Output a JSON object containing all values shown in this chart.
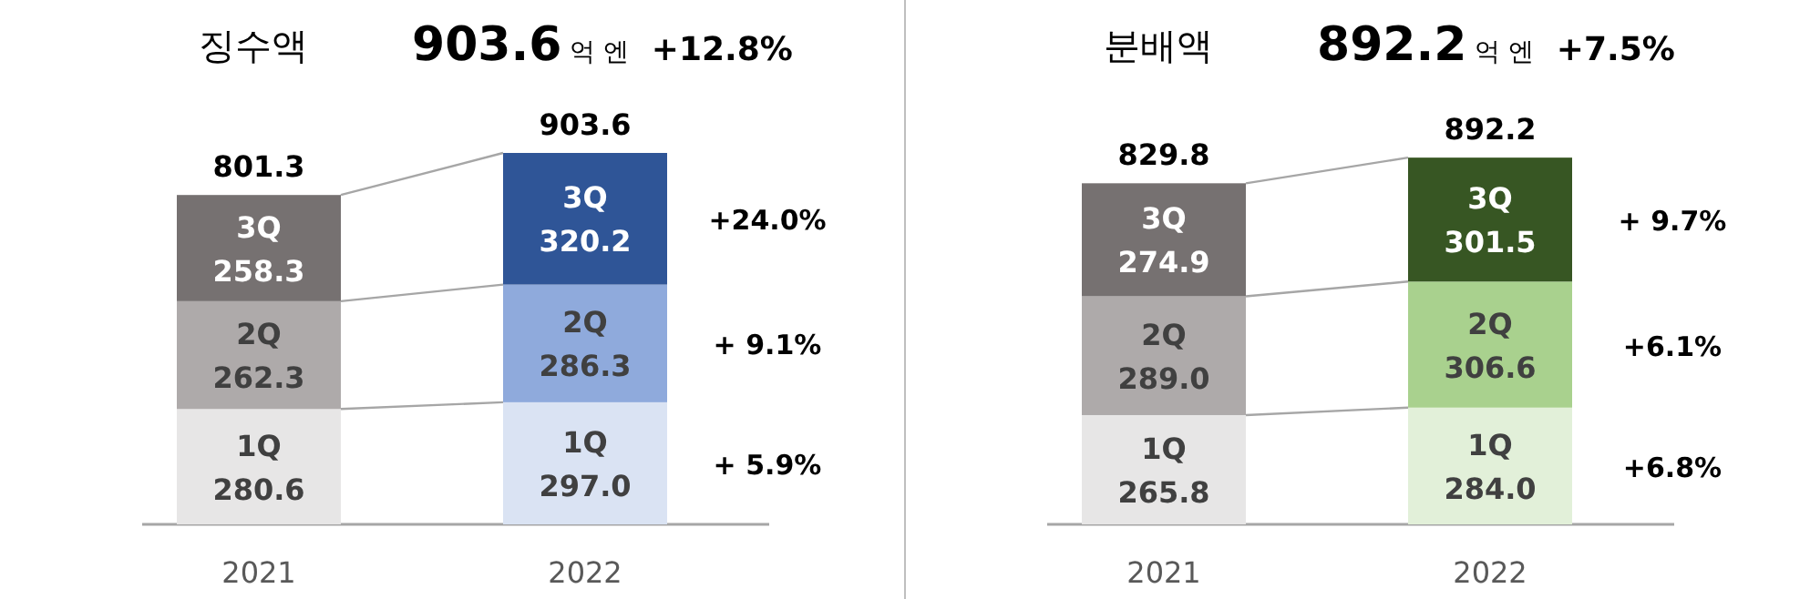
{
  "chart_data": [
    {
      "type": "bar",
      "stacked": true,
      "title": "징수액",
      "subtitle": "903.6 억 엔 +12.8%",
      "categories": [
        "2021",
        "2022"
      ],
      "series": [
        {
          "name": "1Q",
          "colors": [
            "#e7e6e6",
            "#dae3f3"
          ],
          "values": [
            280.6,
            297.0
          ],
          "value_labels": [
            "280.6",
            "297.0"
          ]
        },
        {
          "name": "2Q",
          "colors": [
            "#aeaaaa",
            "#8faadc"
          ],
          "values": [
            262.3,
            286.3
          ],
          "value_labels": [
            "262.3",
            "286.3"
          ]
        },
        {
          "name": "3Q",
          "colors": [
            "#767171",
            "#2f5597"
          ],
          "values": [
            258.3,
            320.2
          ],
          "value_labels": [
            "258.3",
            "320.2"
          ]
        }
      ],
      "totals": [
        "801.3",
        "903.6"
      ],
      "annotations": [
        "+24.0%",
        "+ 9.1%",
        "+ 5.9%"
      ]
    },
    {
      "type": "bar",
      "stacked": true,
      "title": "분배액",
      "subtitle": "892.2 억 엔 +7.5%",
      "categories": [
        "2021",
        "2022"
      ],
      "series": [
        {
          "name": "1Q",
          "colors": [
            "#e7e6e6",
            "#e2f0d9"
          ],
          "values": [
            265.8,
            284.0
          ],
          "value_labels": [
            "265.8",
            "284.0"
          ]
        },
        {
          "name": "2Q",
          "colors": [
            "#aeaaaa",
            "#a9d18e"
          ],
          "values": [
            289.0,
            306.6
          ],
          "value_labels": [
            "289.0",
            "306.6"
          ]
        },
        {
          "name": "3Q",
          "colors": [
            "#767171",
            "#375623"
          ],
          "values": [
            274.9,
            301.5
          ],
          "value_labels": [
            "274.9",
            "301.5"
          ]
        }
      ],
      "totals": [
        "829.8",
        "892.2"
      ],
      "annotations": [
        "+ 9.7%",
        "+6.1%",
        "+6.8%"
      ]
    }
  ]
}
